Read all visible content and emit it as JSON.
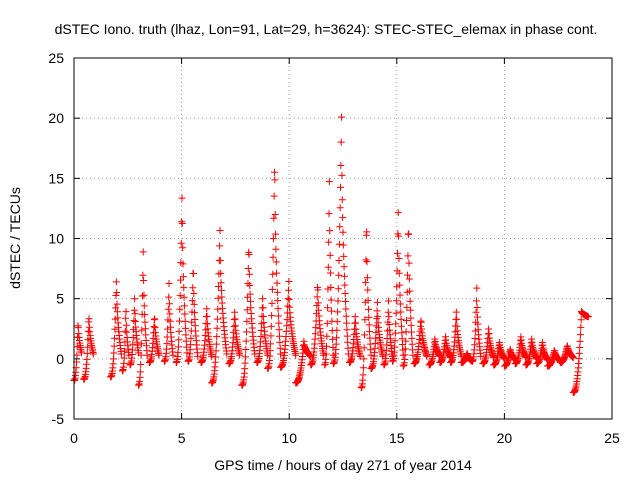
{
  "chart_data": {
    "type": "scatter",
    "title": "dSTEC Iono. truth (lhaz, Lon=91, Lat=29, h=3624): STEC-STEC_elemax in phase cont.",
    "xlabel": "GPS time / hours of day 271 of year 2014",
    "ylabel": "dSTEC  / TECUs",
    "xlim": [
      0,
      25
    ],
    "ylim": [
      -5,
      25
    ],
    "x_ticks": [
      0,
      5,
      10,
      15,
      20,
      25
    ],
    "y_ticks": [
      -5,
      0,
      5,
      10,
      15,
      20,
      25
    ],
    "x_tick_labels": [
      "0",
      "5",
      "10",
      "15",
      "20",
      "25"
    ],
    "y_tick_labels": [
      "-5",
      "0",
      "5",
      "10",
      "15",
      "20",
      "25"
    ],
    "grid": true,
    "grid_style": "dotted",
    "marker": "+",
    "marker_color": "#ff0000",
    "series": [
      {
        "arcs": [
          {
            "t0": 0.0,
            "t1": 0.35,
            "y0": -1.8,
            "peak": 3.3,
            "y1": 0.5
          },
          {
            "t0": 0.45,
            "t1": 0.9,
            "y0": -1.7,
            "peak": 3.8,
            "y1": 0.4
          },
          {
            "t0": 1.7,
            "t1": 2.2,
            "y0": -1.5,
            "peak": 7.0,
            "y1": 0.4
          },
          {
            "t0": 2.25,
            "t1": 2.55,
            "y0": -1.0,
            "peak": 4.5,
            "y1": 0.3
          },
          {
            "t0": 2.6,
            "t1": 3.0,
            "y0": -0.5,
            "peak": 5.2,
            "y1": 0.5
          },
          {
            "t0": 3.0,
            "t1": 3.4,
            "y0": -2.2,
            "peak": 9.3,
            "y1": 0.3
          },
          {
            "t0": 3.5,
            "t1": 3.95,
            "y0": -0.3,
            "peak": 3.8,
            "y1": 0.3
          },
          {
            "t0": 4.2,
            "t1": 4.6,
            "y0": -0.2,
            "peak": 6.5,
            "y1": 0.3
          },
          {
            "t0": 4.75,
            "t1": 5.25,
            "y0": -0.3,
            "peak": 14.4,
            "y1": 0.5
          },
          {
            "t0": 5.3,
            "t1": 5.75,
            "y0": -0.2,
            "peak": 8.2,
            "y1": 0.2
          },
          {
            "t0": 5.9,
            "t1": 6.4,
            "y0": -0.3,
            "peak": 4.5,
            "y1": 0.2
          },
          {
            "t0": 6.4,
            "t1": 7.1,
            "y0": -2.0,
            "peak": 10.8,
            "y1": 0.4
          },
          {
            "t0": 7.2,
            "t1": 7.7,
            "y0": -0.4,
            "peak": 4.2,
            "y1": 0.3
          },
          {
            "t0": 7.8,
            "t1": 8.4,
            "y0": -2.2,
            "peak": 10.0,
            "y1": 0.4
          },
          {
            "t0": 8.5,
            "t1": 9.0,
            "y0": -0.3,
            "peak": 5.4,
            "y1": 0.3
          },
          {
            "t0": 9.0,
            "t1": 9.6,
            "y0": -0.8,
            "peak": 17.2,
            "y1": 0.4
          },
          {
            "t0": 9.6,
            "t1": 10.3,
            "y0": -0.7,
            "peak": 6.5,
            "y1": 0.3
          },
          {
            "t0": 10.3,
            "t1": 11.0,
            "y0": -2.0,
            "peak": 1.5,
            "y1": 0.2
          },
          {
            "t0": 11.0,
            "t1": 11.6,
            "y0": -0.5,
            "peak": 6.6,
            "y1": 0.3
          },
          {
            "t0": 11.65,
            "t1": 12.05,
            "y0": -0.5,
            "peak": 15.3,
            "y1": 0.3
          },
          {
            "t0": 12.05,
            "t1": 12.75,
            "y0": -0.4,
            "peak": 20.3,
            "y1": 0.4
          },
          {
            "t0": 12.8,
            "t1": 13.3,
            "y0": -0.3,
            "peak": 3.8,
            "y1": 0.2
          },
          {
            "t0": 13.35,
            "t1": 13.8,
            "y0": -2.4,
            "peak": 12.2,
            "y1": 0.3
          },
          {
            "t0": 13.8,
            "t1": 14.35,
            "y0": -0.8,
            "peak": 4.8,
            "y1": 0.2
          },
          {
            "t0": 14.4,
            "t1": 14.8,
            "y0": -0.5,
            "peak": 5.0,
            "y1": 0.2
          },
          {
            "t0": 14.8,
            "t1": 15.3,
            "y0": -0.2,
            "peak": 13.1,
            "y1": 0.3
          },
          {
            "t0": 15.3,
            "t1": 15.75,
            "y0": -0.6,
            "peak": 12.0,
            "y1": 0.3
          },
          {
            "t0": 15.8,
            "t1": 16.4,
            "y0": -0.4,
            "peak": 3.5,
            "y1": 0.2
          },
          {
            "t0": 16.5,
            "t1": 17.0,
            "y0": -0.5,
            "peak": 1.8,
            "y1": 0.2
          },
          {
            "t0": 17.0,
            "t1": 17.5,
            "y0": -0.3,
            "peak": 2.0,
            "y1": 0.1
          },
          {
            "t0": 17.5,
            "t1": 18.0,
            "y0": -0.3,
            "peak": 4.2,
            "y1": 0.2
          },
          {
            "t0": 18.0,
            "t1": 18.5,
            "y0": -0.3,
            "peak": 0.5,
            "y1": -0.2
          },
          {
            "t0": 18.5,
            "t1": 18.9,
            "y0": -0.2,
            "peak": 6.1,
            "y1": 0.2
          },
          {
            "t0": 19.0,
            "t1": 19.5,
            "y0": -0.4,
            "peak": 2.7,
            "y1": 0.1
          },
          {
            "t0": 19.5,
            "t1": 20.0,
            "y0": -0.5,
            "peak": 1.5,
            "y1": 0.0
          },
          {
            "t0": 20.0,
            "t1": 20.5,
            "y0": -0.6,
            "peak": 0.9,
            "y1": -0.1
          },
          {
            "t0": 20.5,
            "t1": 21.0,
            "y0": -0.4,
            "peak": 2.0,
            "y1": 0.1
          },
          {
            "t0": 21.0,
            "t1": 21.5,
            "y0": -0.5,
            "peak": 1.8,
            "y1": 0.0
          },
          {
            "t0": 21.5,
            "t1": 22.0,
            "y0": -0.4,
            "peak": 1.5,
            "y1": -0.1
          },
          {
            "t0": 22.0,
            "t1": 22.6,
            "y0": -0.6,
            "peak": 0.8,
            "y1": -0.2
          },
          {
            "t0": 22.6,
            "t1": 23.2,
            "y0": -0.3,
            "peak": 1.2,
            "y1": 0.1
          },
          {
            "t0": 23.2,
            "t1": 23.9,
            "y0": -2.8,
            "peak": 4.0,
            "y1": 3.5
          }
        ]
      }
    ]
  }
}
